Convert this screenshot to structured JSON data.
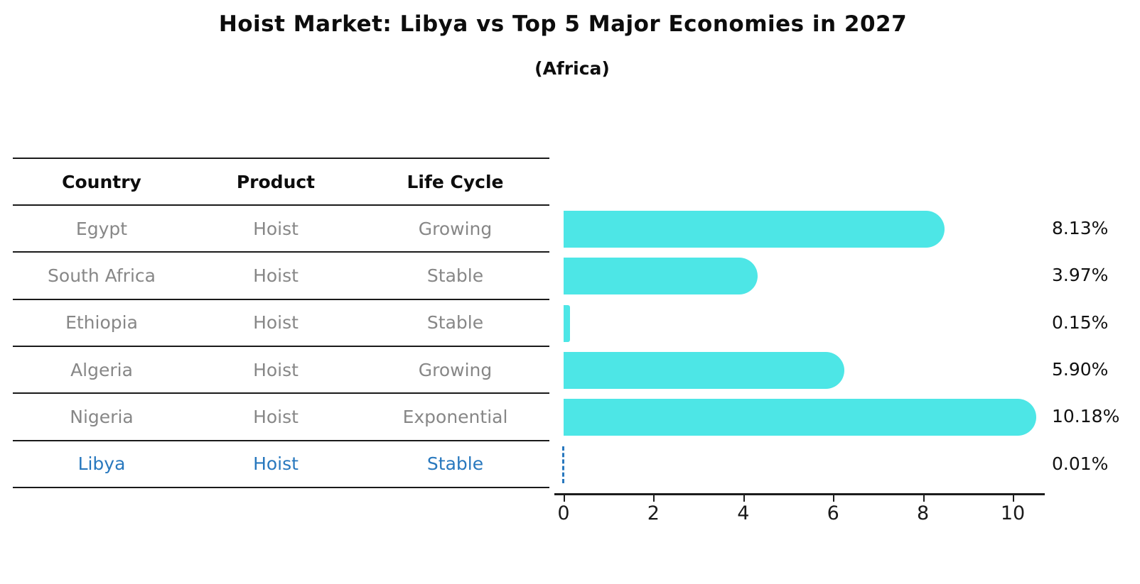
{
  "title": "Hoist Market: Libya vs Top 5 Major Economies in 2027",
  "subtitle": "(Africa)",
  "table": {
    "headers": [
      "Country",
      "Product",
      "Life Cycle"
    ],
    "rows": [
      {
        "country": "Egypt",
        "product": "Hoist",
        "life_cycle": "Growing",
        "highlight": false
      },
      {
        "country": "South Africa",
        "product": "Hoist",
        "life_cycle": "Stable",
        "highlight": false
      },
      {
        "country": "Ethiopia",
        "product": "Hoist",
        "life_cycle": "Stable",
        "highlight": false
      },
      {
        "country": "Algeria",
        "product": "Hoist",
        "life_cycle": "Growing",
        "highlight": false
      },
      {
        "country": "Nigeria",
        "product": "Hoist",
        "life_cycle": "Exponential",
        "highlight": false
      },
      {
        "country": "Libya",
        "product": "Hoist",
        "life_cycle": "Stable",
        "highlight": true
      }
    ]
  },
  "chart_data": {
    "type": "bar",
    "orientation": "horizontal",
    "title": "Hoist Market: Libya vs Top 5 Major Economies in 2027",
    "subtitle": "(Africa)",
    "categories": [
      "Egypt",
      "South Africa",
      "Ethiopia",
      "Algeria",
      "Nigeria",
      "Libya"
    ],
    "values": [
      8.13,
      3.97,
      0.15,
      5.9,
      10.18,
      0.01
    ],
    "value_labels": [
      "8.13%",
      "3.97%",
      "0.15%",
      "5.90%",
      "10.18%",
      "0.01%"
    ],
    "x_ticks": [
      0,
      2,
      4,
      6,
      8,
      10
    ],
    "xlim": [
      0,
      10.7
    ],
    "grid": false,
    "legend": "none",
    "bar_color": "#4DE6E6",
    "highlight_index": 5,
    "highlight_color": "#2878BE",
    "highlight_style": "dashed-outline",
    "text_colors": {
      "header": "#0d0d0d",
      "row": "#878787",
      "value_label": "#111111"
    }
  }
}
